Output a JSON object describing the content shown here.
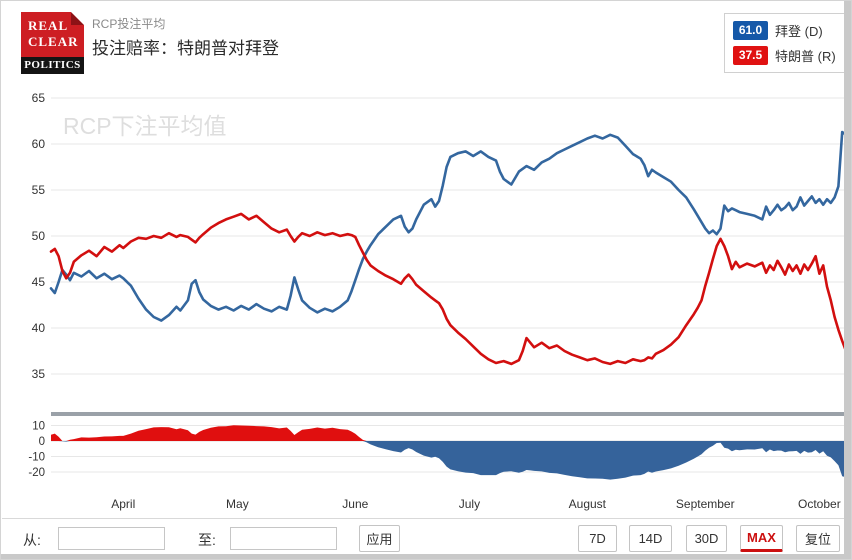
{
  "header": {
    "logo_line1": "REAL",
    "logo_line2": "CLEAR",
    "logo_line3": "POLITICS",
    "subtitle": "RCP投注平均",
    "title": "投注赔率：特朗普对拜登"
  },
  "legend": {
    "items": [
      {
        "value": "61.0",
        "label": "拜登 (D)",
        "color": "#1558a8"
      },
      {
        "value": "37.5",
        "label": "特朗普 (R)",
        "color": "#e01212"
      }
    ]
  },
  "chart_data": {
    "type": "line",
    "watermark": "RCP下注平均值",
    "y_axis_main": {
      "ticks": [
        65,
        60,
        55,
        50,
        45,
        40,
        35
      ],
      "range": [
        33,
        66
      ]
    },
    "y_axis_spread": {
      "ticks": [
        10,
        0,
        -10,
        -20
      ],
      "range": [
        -26,
        11
      ]
    },
    "x_range_days": [
      0,
      209
    ],
    "x_ticks": [
      {
        "pos": 19,
        "label": "April"
      },
      {
        "pos": 49,
        "label": "May"
      },
      {
        "pos": 80,
        "label": "June"
      },
      {
        "pos": 110,
        "label": "July"
      },
      {
        "pos": 141,
        "label": "August"
      },
      {
        "pos": 172,
        "label": "September"
      },
      {
        "pos": 202,
        "label": "October"
      }
    ],
    "x": [
      0,
      1,
      2,
      3,
      4,
      5,
      6,
      8,
      10,
      12,
      14,
      16,
      18,
      19,
      21,
      23,
      25,
      27,
      29,
      31,
      33,
      34,
      36,
      37,
      38,
      39,
      40,
      42,
      44,
      46,
      48,
      50,
      52,
      54,
      56,
      58,
      60,
      62,
      63,
      64,
      65,
      66,
      68,
      70,
      72,
      74,
      76,
      78,
      79,
      80,
      81,
      82,
      83,
      84,
      86,
      88,
      90,
      92,
      93,
      94,
      95,
      96,
      98,
      100,
      101,
      102,
      103,
      104,
      105,
      107,
      109,
      111,
      113,
      115,
      117,
      118,
      119,
      121,
      123,
      124,
      125,
      126,
      127,
      129,
      131,
      133,
      135,
      137,
      139,
      141,
      143,
      145,
      147,
      149,
      151,
      153,
      155,
      156,
      157,
      158,
      159,
      161,
      163,
      165,
      167,
      169,
      170,
      171,
      172,
      173,
      174,
      175,
      176,
      177,
      178,
      179,
      180,
      181,
      183,
      185,
      187,
      188,
      189,
      190,
      191,
      192,
      193,
      194,
      195,
      196,
      197,
      198,
      199,
      200,
      201,
      202,
      203,
      204,
      205,
      206,
      207,
      208,
      209
    ],
    "series": [
      {
        "name": "拜登 (D)",
        "color": "#34679f",
        "final_value": 61.0,
        "values": [
          44.3,
          43.8,
          45.0,
          46.3,
          45.8,
          45.2,
          46.0,
          45.6,
          46.2,
          45.4,
          45.9,
          45.3,
          45.7,
          45.4,
          44.6,
          43.2,
          42.0,
          41.2,
          40.8,
          41.4,
          42.3,
          41.9,
          43.0,
          44.8,
          45.2,
          43.9,
          43.1,
          42.4,
          42.0,
          42.3,
          41.9,
          42.4,
          42.0,
          42.6,
          42.1,
          41.8,
          42.3,
          42.0,
          43.5,
          45.5,
          44.2,
          43.0,
          42.2,
          41.7,
          42.1,
          41.8,
          42.3,
          43.0,
          44.0,
          45.2,
          46.4,
          47.5,
          48.3,
          49.0,
          50.2,
          51.0,
          51.8,
          52.2,
          51.0,
          50.4,
          50.8,
          51.8,
          53.4,
          54.0,
          53.2,
          53.8,
          55.5,
          57.5,
          58.6,
          59.0,
          59.2,
          58.7,
          59.2,
          58.6,
          58.2,
          57.0,
          56.2,
          55.6,
          57.0,
          57.3,
          57.6,
          57.4,
          57.2,
          58.0,
          58.4,
          59.0,
          59.4,
          59.8,
          60.2,
          60.6,
          60.9,
          60.6,
          61.0,
          60.7,
          59.8,
          58.9,
          58.4,
          57.7,
          56.5,
          57.2,
          56.9,
          56.4,
          55.9,
          55.0,
          54.2,
          52.9,
          52.2,
          51.5,
          50.8,
          50.3,
          50.6,
          50.2,
          50.8,
          53.3,
          52.7,
          53.0,
          52.8,
          52.6,
          52.4,
          52.2,
          51.8,
          53.2,
          52.3,
          52.8,
          53.4,
          52.8,
          53.1,
          53.6,
          52.8,
          53.2,
          54.2,
          53.3,
          53.8,
          54.3,
          53.6,
          54.0,
          53.4,
          54.0,
          53.6,
          54.2,
          55.4,
          61.3,
          61.0
        ]
      },
      {
        "name": "特朗普 (R)",
        "color": "#d20f0f",
        "final_value": 37.5,
        "values": [
          48.3,
          48.6,
          47.8,
          46.2,
          45.4,
          46.0,
          47.2,
          47.9,
          48.4,
          47.8,
          48.8,
          48.3,
          49.0,
          48.7,
          49.4,
          49.8,
          49.7,
          50.0,
          49.8,
          50.3,
          49.9,
          50.1,
          49.9,
          49.6,
          49.3,
          49.8,
          50.2,
          50.9,
          51.4,
          51.8,
          52.1,
          52.4,
          51.8,
          52.2,
          51.5,
          50.8,
          50.4,
          50.7,
          50.0,
          49.4,
          49.9,
          50.3,
          50.0,
          50.4,
          50.1,
          50.3,
          50.0,
          50.2,
          50.1,
          49.9,
          49.0,
          48.2,
          47.4,
          46.8,
          46.2,
          45.7,
          45.3,
          44.8,
          45.4,
          45.8,
          45.3,
          44.7,
          44.0,
          43.3,
          43.0,
          42.7,
          42.0,
          41.0,
          40.3,
          39.5,
          38.8,
          38.0,
          37.2,
          36.6,
          36.2,
          36.3,
          36.4,
          36.1,
          36.5,
          37.5,
          38.9,
          38.4,
          37.9,
          38.4,
          37.8,
          38.1,
          37.5,
          37.1,
          36.8,
          36.5,
          36.7,
          36.3,
          36.1,
          36.4,
          36.2,
          36.6,
          36.4,
          36.5,
          36.8,
          36.7,
          37.2,
          37.6,
          38.2,
          39.0,
          40.3,
          41.5,
          42.2,
          43.0,
          44.6,
          46.0,
          47.5,
          48.9,
          49.7,
          48.9,
          47.8,
          46.4,
          47.2,
          46.6,
          47.0,
          46.7,
          47.1,
          46.0,
          46.8,
          46.3,
          47.3,
          46.6,
          45.8,
          46.9,
          46.2,
          46.8,
          45.9,
          46.9,
          46.3,
          47.0,
          47.8,
          45.9,
          46.8,
          44.5,
          43.0,
          41.2,
          39.8,
          38.6,
          37.5
        ]
      }
    ],
    "spread": {
      "note": "lower panel = 特朗普 − 拜登 (derived from the two series)",
      "pos_color": "#e00f0f",
      "neg_color": "#35639b"
    }
  },
  "footer": {
    "from_label": "从:",
    "to_label": "至:",
    "from_value": "",
    "to_value": "",
    "apply_label": "应用",
    "ranges": [
      "7D",
      "14D",
      "30D",
      "MAX"
    ],
    "active_range": "MAX",
    "reset_label": "复位"
  }
}
